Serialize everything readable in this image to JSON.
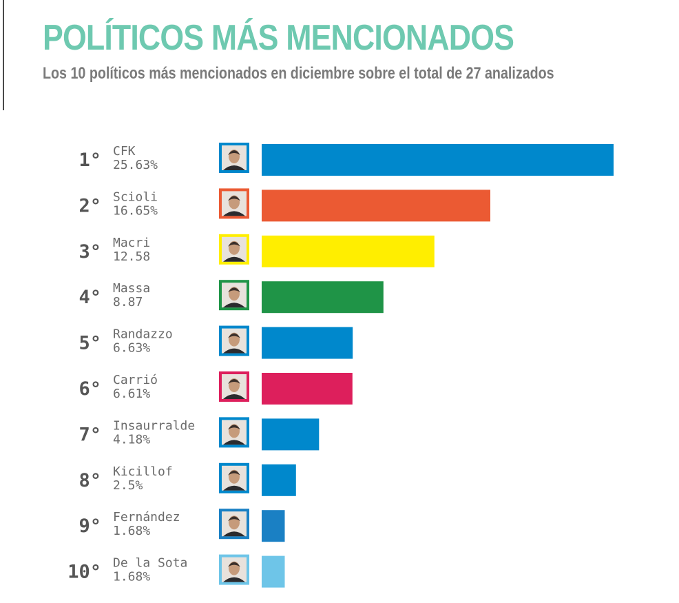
{
  "header": {
    "title": "POLÍTICOS MÁS MENCIONADOS",
    "subtitle": "Los 10 políticos más mencionados en diciembre sobre el total de 27 analizados"
  },
  "colors": {
    "title": "#6ec9b0"
  },
  "chart_data": {
    "type": "bar",
    "orientation": "horizontal",
    "grid": false,
    "legend": "none",
    "xlim": [
      0,
      25.63
    ],
    "bars": [
      {
        "rank": "1°",
        "name": "CFK",
        "label": "25.63%",
        "value": 25.63,
        "color": "#0088cc",
        "photo": "cfk-portrait"
      },
      {
        "rank": "2°",
        "name": "Scioli",
        "label": "16.65%",
        "value": 16.65,
        "color": "#eb5a33",
        "photo": "scioli-portrait"
      },
      {
        "rank": "3°",
        "name": "Macri",
        "label": "12.58",
        "value": 12.58,
        "color": "#ffee00",
        "photo": "macri-portrait"
      },
      {
        "rank": "4°",
        "name": "Massa",
        "label": "8.87",
        "value": 8.87,
        "color": "#1f9447",
        "photo": "massa-portrait"
      },
      {
        "rank": "5°",
        "name": "Randazzo",
        "label": "6.63%",
        "value": 6.63,
        "color": "#0088cc",
        "photo": "randazzo-portrait"
      },
      {
        "rank": "6°",
        "name": "Carrió",
        "label": "6.61%",
        "value": 6.61,
        "color": "#dd1f5c",
        "photo": "carrio-portrait"
      },
      {
        "rank": "7°",
        "name": "Insaurralde",
        "label": "4.18%",
        "value": 4.18,
        "color": "#0088cc",
        "photo": "insaurralde-portrait"
      },
      {
        "rank": "8°",
        "name": "Kicillof",
        "label": "2.5%",
        "value": 2.5,
        "color": "#0088cc",
        "photo": "kicillof-portrait"
      },
      {
        "rank": "9°",
        "name": "Fernández",
        "label": "1.68%",
        "value": 1.68,
        "color": "#1a80c4",
        "photo": "fernandez-portrait"
      },
      {
        "rank": "10°",
        "name": "De la Sota",
        "label": "1.68%",
        "value": 1.68,
        "color": "#6ec5e8",
        "photo": "delasota-portrait"
      }
    ]
  }
}
